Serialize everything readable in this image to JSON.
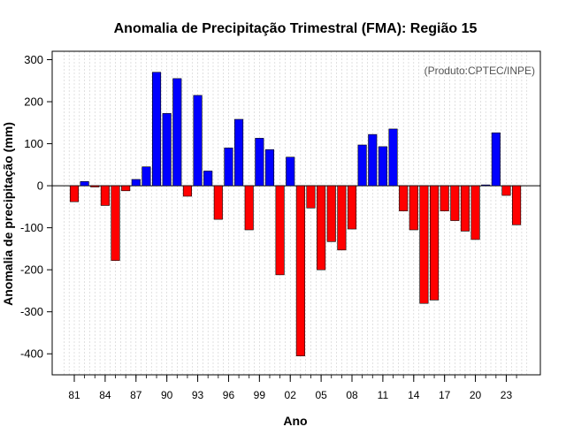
{
  "chart_data": {
    "type": "bar",
    "title": "Anomalia de Precipitação Trimestral (FMA): Região 15",
    "xlabel": "Ano",
    "ylabel": "Anomalia de precipitação (mm)",
    "credit": "(Produto:CPTEC/INPE)",
    "ylim": [
      -450,
      320
    ],
    "yticks": [
      300,
      200,
      100,
      0,
      -100,
      -200,
      -300,
      -400
    ],
    "ytick_labels": [
      "300",
      "200",
      "100",
      "0",
      "-100",
      "-200",
      "-300",
      "-400"
    ],
    "categories": [
      1981,
      1982,
      1983,
      1984,
      1985,
      1986,
      1987,
      1988,
      1989,
      1990,
      1991,
      1992,
      1993,
      1994,
      1995,
      1996,
      1997,
      1998,
      1999,
      2000,
      2001,
      2002,
      2003,
      2004,
      2005,
      2006,
      2007,
      2008,
      2009,
      2010,
      2011,
      2012,
      2013,
      2014,
      2015,
      2016,
      2017,
      2018,
      2019,
      2020,
      2021,
      2022,
      2023,
      2024
    ],
    "xtick_labels": [
      {
        "year": 1981,
        "label": "81"
      },
      {
        "year": 1984,
        "label": "84"
      },
      {
        "year": 1987,
        "label": "87"
      },
      {
        "year": 1990,
        "label": "90"
      },
      {
        "year": 1993,
        "label": "93"
      },
      {
        "year": 1996,
        "label": "96"
      },
      {
        "year": 1999,
        "label": "99"
      },
      {
        "year": 2002,
        "label": "02"
      },
      {
        "year": 2005,
        "label": "05"
      },
      {
        "year": 2008,
        "label": "08"
      },
      {
        "year": 2011,
        "label": "11"
      },
      {
        "year": 2014,
        "label": "14"
      },
      {
        "year": 2017,
        "label": "17"
      },
      {
        "year": 2020,
        "label": "20"
      },
      {
        "year": 2023,
        "label": "23"
      }
    ],
    "values": [
      -38,
      10,
      -3,
      -47,
      -178,
      -12,
      15,
      45,
      270,
      172,
      255,
      -25,
      215,
      35,
      -80,
      90,
      158,
      -105,
      113,
      86,
      -212,
      68,
      -405,
      -53,
      -200,
      -133,
      -153,
      -103,
      97,
      122,
      93,
      135,
      -60,
      -105,
      -280,
      -272,
      -60,
      -83,
      -108,
      -128,
      2,
      126,
      -23,
      -93
    ],
    "colors": {
      "positive": "#0000ff",
      "negative": "#ff0000",
      "edge": "#000000",
      "grid": "#cccccc"
    }
  }
}
